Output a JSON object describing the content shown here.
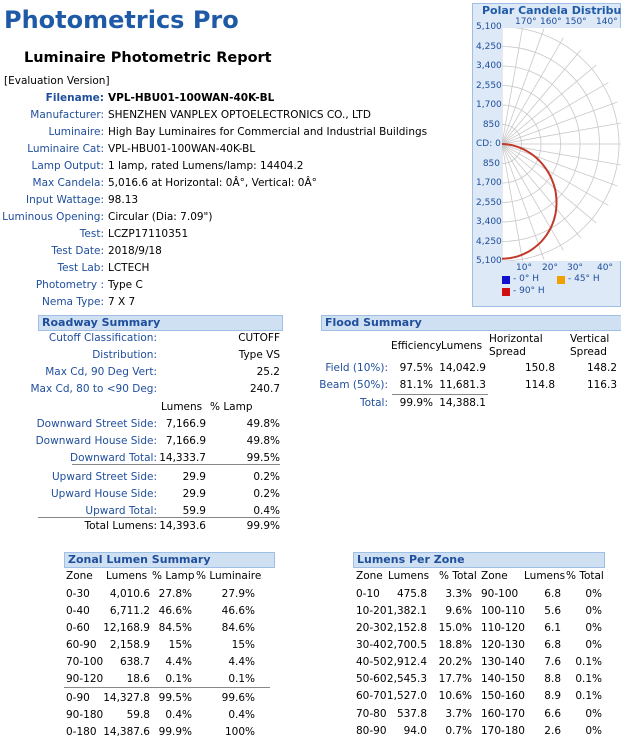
{
  "header": {
    "app_title": "Photometrics Pro",
    "report_title": "Luminaire Photometric Report",
    "evaluation": "[Evaluation Version]"
  },
  "info": [
    {
      "label": "Filename:",
      "value": "VPL-HBU01-100WAN-40K-BL",
      "bold": true
    },
    {
      "label": "Manufacturer:",
      "value": "SHENZHEN VANPLEX OPTOELECTRONICS CO., LTD"
    },
    {
      "label": "Luminaire:",
      "value": "High Bay Luminaires for Commercial and Industrial Buildings"
    },
    {
      "label": "Luminaire Cat:",
      "value": "VPL-HBU01-100WAN-40K-BL"
    },
    {
      "label": "Lamp Output:",
      "value": "1 lamp, rated Lumens/lamp: 14404.2"
    },
    {
      "label": "Max Candela:",
      "value": "5,016.6 at Horizontal: 0Â°, Vertical: 0Â°"
    },
    {
      "label": "Input Wattage:",
      "value": "98.13"
    },
    {
      "label": "Luminous Opening:",
      "value": "Circular (Dia: 7.09\")"
    },
    {
      "label": "Test:",
      "value": "LCZP17110351"
    },
    {
      "label": "Test Date:",
      "value": "2018/9/18"
    },
    {
      "label": "Test Lab:",
      "value": "LCTECH"
    },
    {
      "label": "Photometry :",
      "value": "Type C"
    },
    {
      "label": "Nema Type:",
      "value": "7 X 7"
    }
  ],
  "polar": {
    "title": "Polar Candela Distribution",
    "top_angles": [
      "170°",
      "160°",
      "150°",
      "140°"
    ],
    "bottom_angles": [
      "10°",
      "20°",
      "30°",
      "40°"
    ],
    "scale_labels": [
      "5,100",
      "4,250",
      "3,400",
      "2,550",
      "1,700",
      "850",
      "CD: 0",
      "850",
      "1,700",
      "2,550",
      "3,400",
      "4,250",
      "5,100"
    ],
    "legend": [
      {
        "label": "- 0° H",
        "color": "#1010d0"
      },
      {
        "label": "- 45° H",
        "color": "#f0a000"
      },
      {
        "label": "- 90° H",
        "color": "#d01010"
      }
    ]
  },
  "roadway": {
    "title": "Roadway Summary",
    "rows": [
      {
        "label": "Cutoff Classification:",
        "value": "CUTOFF"
      },
      {
        "label": "Distribution:",
        "value": "Type VS"
      },
      {
        "label": "Max Cd, 90 Deg Vert:",
        "value": "25.2"
      },
      {
        "label": "Max Cd, 80 to <90 Deg:",
        "value": "240.7"
      }
    ],
    "col_lumens": "Lumens",
    "col_pct": "% Lamp",
    "lumen_rows": [
      {
        "label": "Downward Street Side:",
        "lumens": "7,166.9",
        "pct": "49.8%"
      },
      {
        "label": "Downward House Side:",
        "lumens": "7,166.9",
        "pct": "49.8%"
      },
      {
        "label": "Downward Total:",
        "lumens": "14,333.7",
        "pct": "99.5%"
      },
      {
        "label": "Upward Street Side:",
        "lumens": "29.9",
        "pct": "0.2%"
      },
      {
        "label": "Upward House Side:",
        "lumens": "29.9",
        "pct": "0.2%"
      },
      {
        "label": "Upward Total:",
        "lumens": "59.9",
        "pct": "0.4%"
      }
    ],
    "total": {
      "label": "Total Lumens:",
      "lumens": "14,393.6",
      "pct": "99.9%"
    }
  },
  "flood": {
    "title": "Flood Summary",
    "headers": {
      "efficiency": "Efficiency",
      "lumens": "Lumens",
      "hspread": "Horizontal Spread",
      "vspread": "Vertical Spread"
    },
    "rows": [
      {
        "label": "Field (10%):",
        "eff": "97.5%",
        "lumens": "14,042.9",
        "h": "150.8",
        "v": "148.2"
      },
      {
        "label": "Beam (50%):",
        "eff": "81.1%",
        "lumens": "11,681.3",
        "h": "114.8",
        "v": "116.3"
      }
    ],
    "total": {
      "label": "Total:",
      "eff": "99.9%",
      "lumens": "14,388.1"
    }
  },
  "zonal": {
    "title": "Zonal Lumen Summary",
    "headers": [
      "Zone",
      "Lumens",
      "% Lamp",
      "% Luminaire"
    ],
    "rows": [
      [
        "0-30",
        "4,010.6",
        "27.8%",
        "27.9%"
      ],
      [
        "0-40",
        "6,711.2",
        "46.6%",
        "46.6%"
      ],
      [
        "0-60",
        "12,168.9",
        "84.5%",
        "84.6%"
      ],
      [
        "60-90",
        "2,158.9",
        "15%",
        "15%"
      ],
      [
        "70-100",
        "638.7",
        "4.4%",
        "4.4%"
      ],
      [
        "90-120",
        "18.6",
        "0.1%",
        "0.1%"
      ],
      [
        "0-90",
        "14,327.8",
        "99.5%",
        "99.6%"
      ],
      [
        "90-180",
        "59.8",
        "0.4%",
        "0.4%"
      ],
      [
        "0-180",
        "14,387.6",
        "99.9%",
        "100%"
      ]
    ]
  },
  "per_zone": {
    "title": "Lumens Per Zone",
    "headers": [
      "Zone",
      "Lumens",
      "% Total",
      "Zone",
      "Lumens",
      "% Total"
    ],
    "rows": [
      [
        "0-10",
        "475.8",
        "3.3%",
        "90-100",
        "6.8",
        "0%"
      ],
      [
        "10-20",
        "1,382.1",
        "9.6%",
        "100-110",
        "5.6",
        "0%"
      ],
      [
        "20-30",
        "2,152.8",
        "15.0%",
        "110-120",
        "6.1",
        "0%"
      ],
      [
        "30-40",
        "2,700.5",
        "18.8%",
        "120-130",
        "6.8",
        "0%"
      ],
      [
        "40-50",
        "2,912.4",
        "20.2%",
        "130-140",
        "7.6",
        "0.1%"
      ],
      [
        "50-60",
        "2,545.3",
        "17.7%",
        "140-150",
        "8.8",
        "0.1%"
      ],
      [
        "60-70",
        "1,527.0",
        "10.6%",
        "150-160",
        "8.9",
        "0.1%"
      ],
      [
        "70-80",
        "537.8",
        "3.7%",
        "160-170",
        "6.6",
        "0%"
      ],
      [
        "80-90",
        "94.0",
        "0.7%",
        "170-180",
        "2.6",
        "0%"
      ]
    ]
  }
}
